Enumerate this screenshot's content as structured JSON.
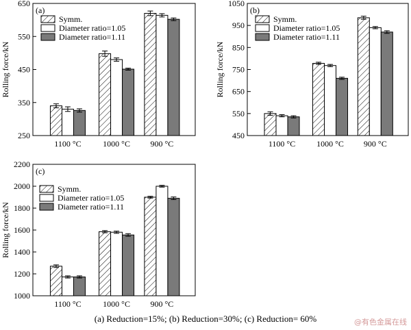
{
  "caption": "(a)    Reduction=15%; (b) Reduction=30%; (c) Reduction= 60%",
  "watermark": "@有色金属在线",
  "colors": {
    "symm": "#ffffff",
    "ratio105": "#ffffff",
    "ratio111": "#7a7a7a",
    "axis": "#000000"
  },
  "chart_data": [
    {
      "type": "bar",
      "panel_label": "(a)",
      "ylabel": "Rolling force/kN",
      "categories": [
        "1100 °C",
        "1000 °C",
        "900 °C"
      ],
      "ylim": [
        250,
        650
      ],
      "yticks": [
        250,
        350,
        450,
        550,
        650
      ],
      "legend_position": "top-left",
      "series": [
        {
          "name": "Symm.",
          "values": [
            340,
            498,
            620
          ],
          "errors": [
            6,
            8,
            7
          ]
        },
        {
          "name": "Diameter ratio=1.05",
          "values": [
            330,
            480,
            614
          ],
          "errors": [
            7,
            5,
            5
          ]
        },
        {
          "name": "Diameter ratio=1.11",
          "values": [
            326,
            451,
            602
          ],
          "errors": [
            5,
            3,
            4
          ]
        }
      ]
    },
    {
      "type": "bar",
      "panel_label": "(b)",
      "ylabel": "Rolling force/kN",
      "categories": [
        "1100 °C",
        "1000 °C",
        "900 °C"
      ],
      "ylim": [
        450,
        1050
      ],
      "yticks": [
        450,
        550,
        650,
        750,
        850,
        950,
        1050
      ],
      "legend_position": "top-left",
      "series": [
        {
          "name": "Symm.",
          "values": [
            550,
            778,
            985
          ],
          "errors": [
            8,
            5,
            7
          ]
        },
        {
          "name": "Diameter ratio=1.05",
          "values": [
            540,
            768,
            940
          ],
          "errors": [
            5,
            5,
            5
          ]
        },
        {
          "name": "Diameter ratio=1.11",
          "values": [
            535,
            710,
            920
          ],
          "errors": [
            5,
            5,
            6
          ]
        }
      ]
    },
    {
      "type": "bar",
      "panel_label": "(c)",
      "ylabel": "Rolling force/kN",
      "categories": [
        "1100 °C",
        "1000 °C",
        "900 °C"
      ],
      "ylim": [
        1000,
        2200
      ],
      "yticks": [
        1000,
        1200,
        1400,
        1600,
        1800,
        2000,
        2200
      ],
      "legend_position": "top-left",
      "series": [
        {
          "name": "Symm.",
          "values": [
            1270,
            1585,
            1900
          ],
          "errors": [
            12,
            10,
            8
          ]
        },
        {
          "name": "Diameter ratio=1.05",
          "values": [
            1172,
            1580,
            2000
          ],
          "errors": [
            10,
            10,
            8
          ]
        },
        {
          "name": "Diameter ratio=1.11",
          "values": [
            1172,
            1555,
            1890
          ],
          "errors": [
            10,
            12,
            12
          ]
        }
      ]
    }
  ]
}
